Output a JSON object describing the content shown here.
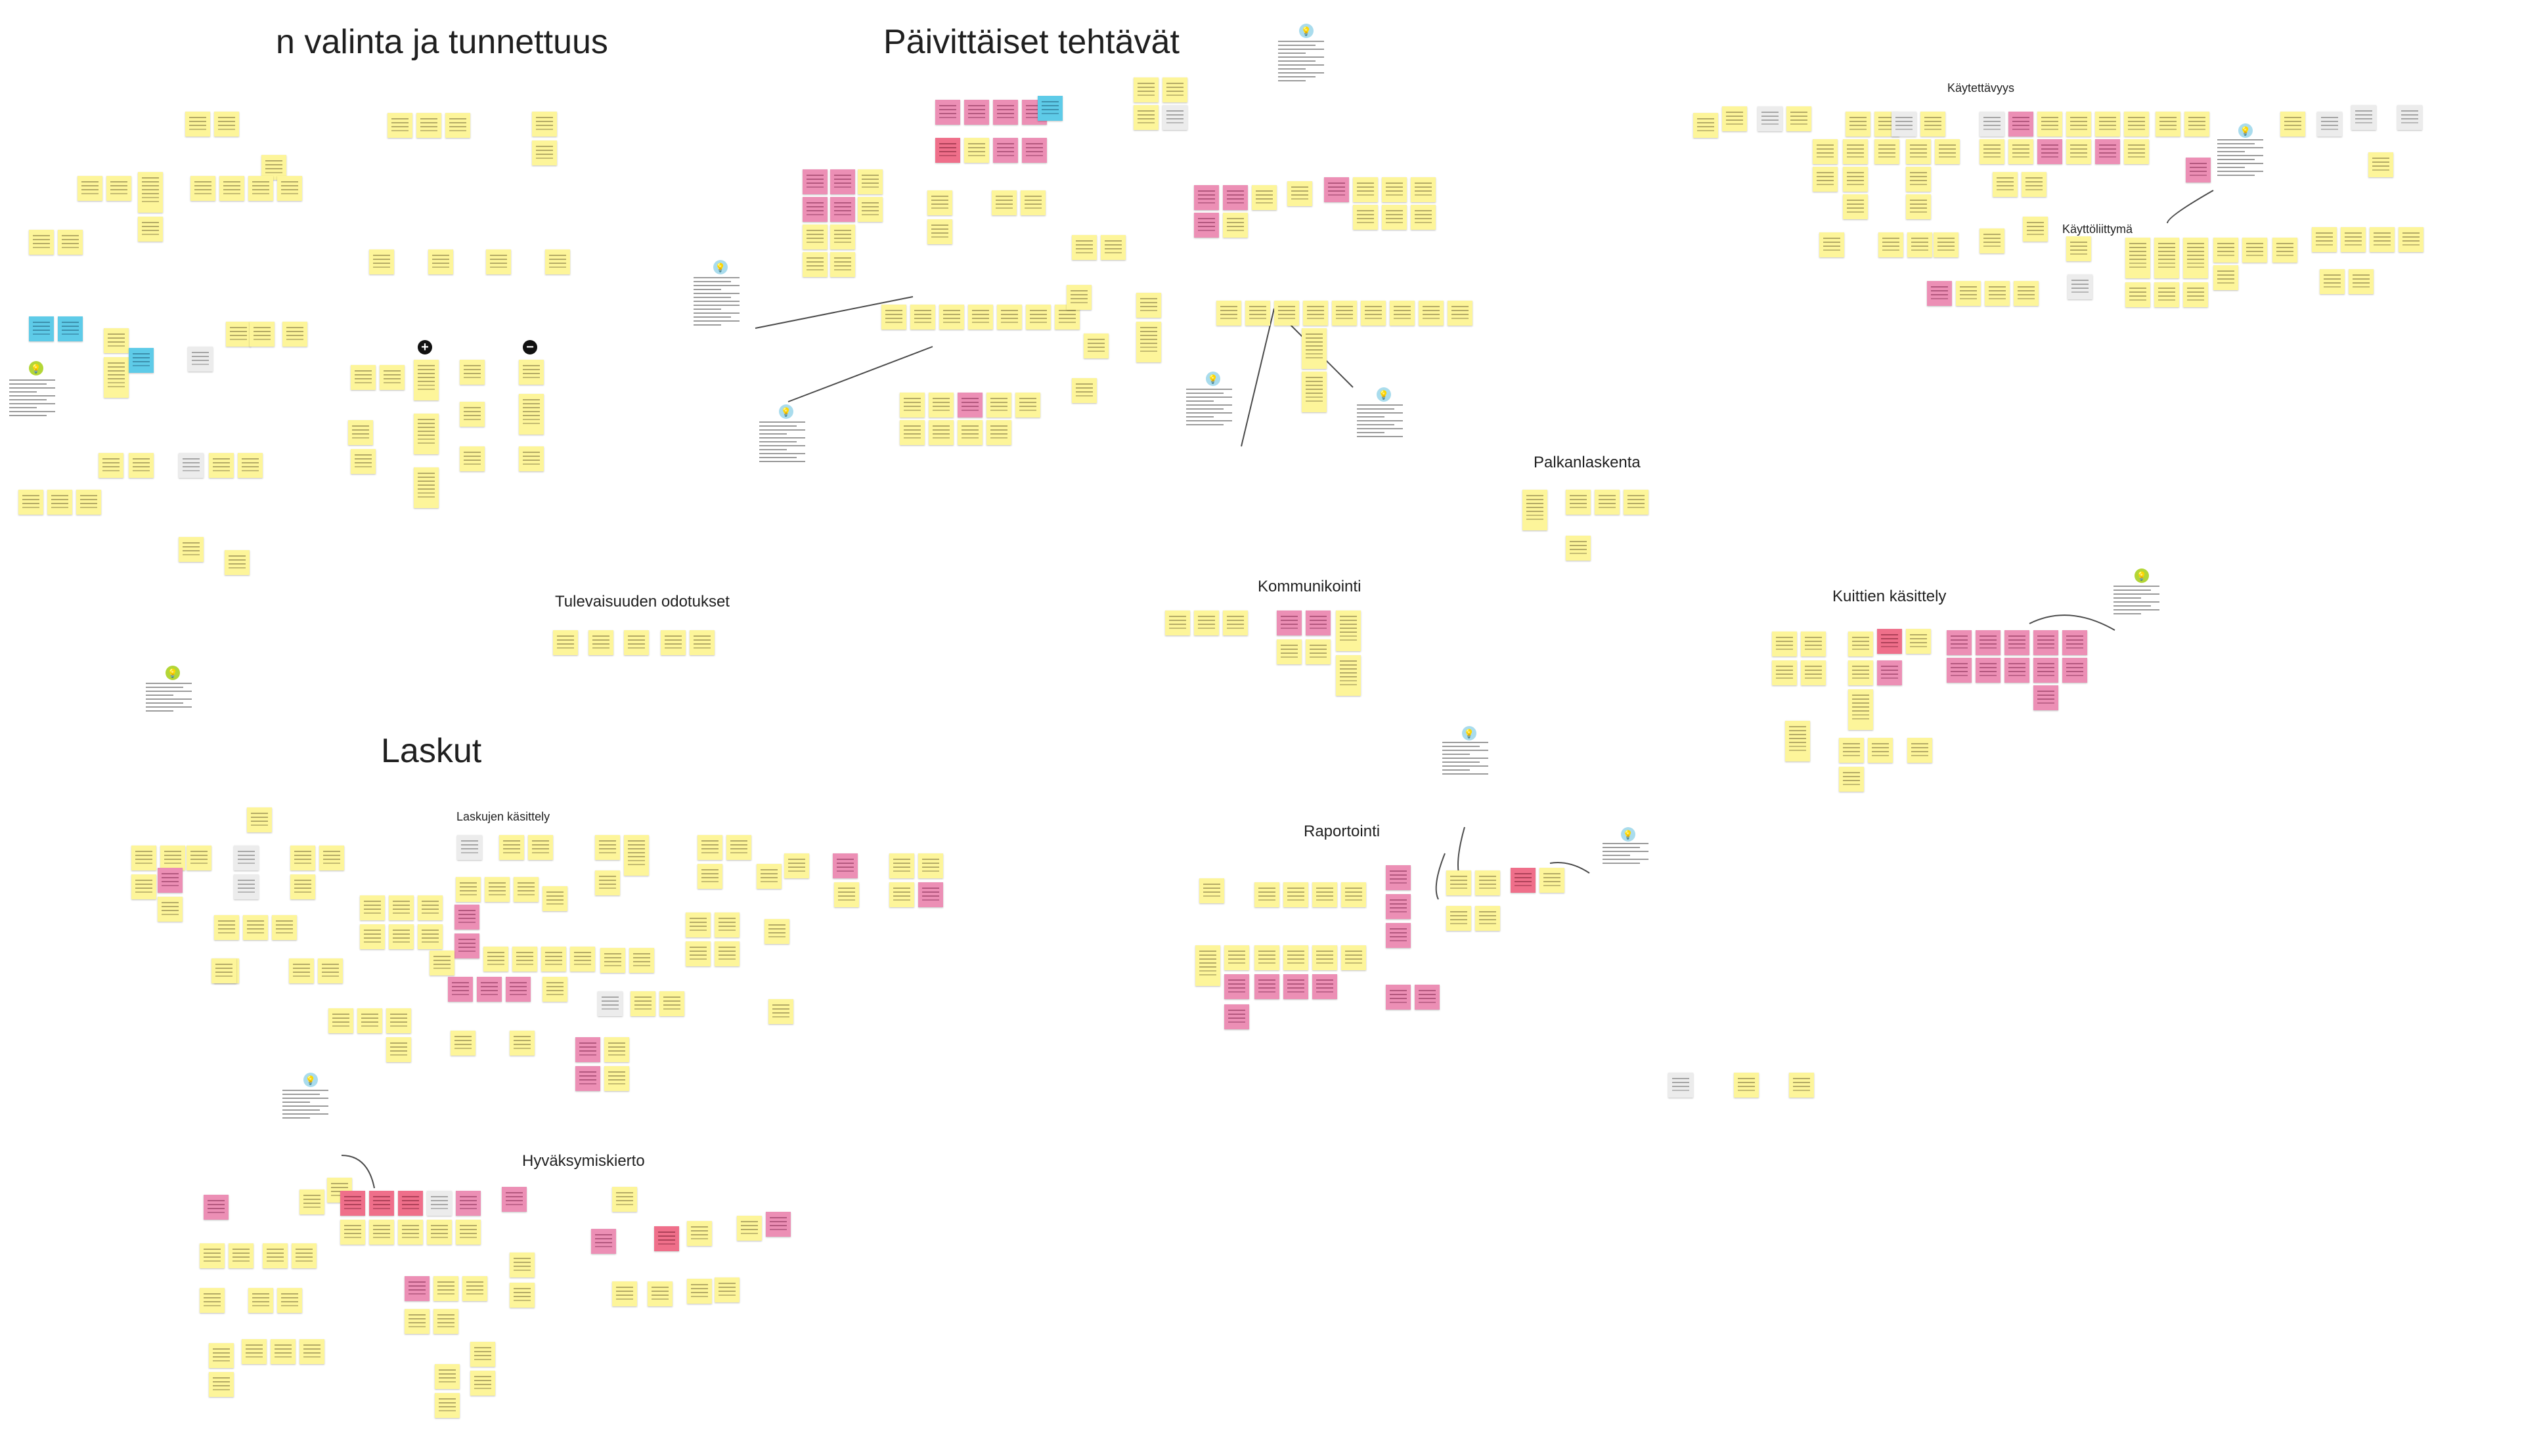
{
  "board": {
    "background": "#ffffff",
    "colors": {
      "yellow": "#fdf59a",
      "pink": "#ec8fb5",
      "red": "#ef6f8a",
      "blue": "#5ecbe8",
      "gray": "#ececec"
    },
    "sections": [
      {
        "id": "valinta",
        "title": "n valinta ja tunnettuus",
        "size": "xl"
      },
      {
        "id": "paivittaiset",
        "title": "Päivittäiset tehtävät",
        "size": "xl"
      },
      {
        "id": "laskut",
        "title": "Laskut",
        "size": "xl"
      },
      {
        "id": "palkanlaskenta",
        "title": "Palkanlaskenta",
        "size": "m"
      },
      {
        "id": "kommunikointi",
        "title": "Kommunikointi",
        "size": "m"
      },
      {
        "id": "kuittien",
        "title": "Kuittien käsittely",
        "size": "m"
      },
      {
        "id": "tulevaisuuden",
        "title": "Tulevaisuuden odotukset",
        "size": "m"
      },
      {
        "id": "raportointi",
        "title": "Raportointi",
        "size": "m"
      },
      {
        "id": "hyvaksymis",
        "title": "Hyväksymiskierto",
        "size": "m"
      },
      {
        "id": "laskujen",
        "title": "Laskujen käsittely",
        "size": "s"
      },
      {
        "id": "kaytettavyys",
        "title": "Käytettävyys",
        "size": "s"
      },
      {
        "id": "kayttoliittyma",
        "title": "Käyttöliittymä",
        "size": "s"
      }
    ],
    "icons": {
      "pin": "lightbulb-icon",
      "plus": "plus-icon",
      "minus": "minus-icon"
    },
    "plus_label": "+",
    "minus_label": "−"
  }
}
